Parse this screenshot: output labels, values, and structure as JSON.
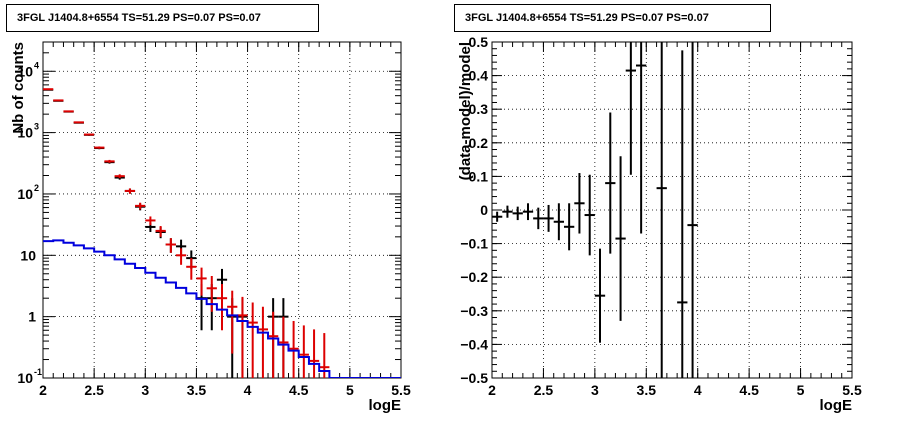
{
  "chart_data": [
    {
      "type": "scatter",
      "title": "3FGL J1404.8+6554 TS=51.29 PS=0.07 PS=0.07",
      "xlabel": "logE",
      "ylabel": "Nb of counts",
      "xlim": [
        2,
        5.5
      ],
      "ylim": [
        0.1,
        30000
      ],
      "yscale": "log",
      "grid": true,
      "x_ticks": [
        "2",
        "2.5",
        "3",
        "3.5",
        "4",
        "4.5",
        "5",
        "5.5"
      ],
      "y_ticks": [
        {
          "base": "10",
          "exp": "-1",
          "value": 0.1
        },
        {
          "base": "1",
          "exp": "",
          "value": 1
        },
        {
          "base": "10",
          "exp": "",
          "value": 10
        },
        {
          "base": "10",
          "exp": "2",
          "value": 100
        },
        {
          "base": "10",
          "exp": "3",
          "value": 1000
        },
        {
          "base": "10",
          "exp": "4",
          "value": 10000
        }
      ],
      "bin_width": 0.1,
      "series": [
        {
          "kind": "data",
          "color": "#000000",
          "points": [
            {
              "x": 2.05,
              "y": 5000,
              "lo": 4930,
              "hi": 5070
            },
            {
              "x": 2.15,
              "y": 3300,
              "lo": 3245,
              "hi": 3355
            },
            {
              "x": 2.25,
              "y": 2200,
              "lo": 2155,
              "hi": 2245
            },
            {
              "x": 2.35,
              "y": 1450,
              "lo": 1412,
              "hi": 1488
            },
            {
              "x": 2.45,
              "y": 920,
              "lo": 890,
              "hi": 950
            },
            {
              "x": 2.55,
              "y": 560,
              "lo": 536,
              "hi": 584
            },
            {
              "x": 2.65,
              "y": 330,
              "lo": 312,
              "hi": 348
            },
            {
              "x": 2.75,
              "y": 185,
              "lo": 171,
              "hi": 199
            },
            {
              "x": 2.85,
              "y": 112,
              "lo": 101,
              "hi": 123
            },
            {
              "x": 2.95,
              "y": 62,
              "lo": 54,
              "hi": 70
            },
            {
              "x": 3.05,
              "y": 29,
              "lo": 24,
              "hi": 34
            },
            {
              "x": 3.15,
              "y": 24,
              "lo": 19,
              "hi": 29
            },
            {
              "x": 3.25,
              "y": 15,
              "lo": 11,
              "hi": 19
            },
            {
              "x": 3.35,
              "y": 14,
              "lo": 10,
              "hi": 18
            },
            {
              "x": 3.45,
              "y": 9,
              "lo": 6,
              "hi": 12
            },
            {
              "x": 3.55,
              "y": 2,
              "lo": 0.6,
              "hi": 3.4
            },
            {
              "x": 3.65,
              "y": 2,
              "lo": 0.6,
              "hi": 3.4
            },
            {
              "x": 3.75,
              "y": 4,
              "lo": 2,
              "hi": 6
            },
            {
              "x": 3.85,
              "y": 1,
              "lo": 0.1,
              "hi": 2
            },
            {
              "x": 3.95,
              "y": 1,
              "lo": 0.1,
              "hi": 2
            },
            {
              "x": 4.25,
              "y": 1,
              "lo": 0.1,
              "hi": 2
            },
            {
              "x": 4.35,
              "y": 1,
              "lo": 0.1,
              "hi": 2
            }
          ]
        },
        {
          "kind": "model",
          "color": "#dd0000",
          "points": [
            {
              "x": 2.05,
              "y": 5100,
              "lo": 5000,
              "hi": 5200
            },
            {
              "x": 2.15,
              "y": 3350,
              "lo": 3280,
              "hi": 3420
            },
            {
              "x": 2.25,
              "y": 2220,
              "lo": 2170,
              "hi": 2270
            },
            {
              "x": 2.35,
              "y": 1470,
              "lo": 1430,
              "hi": 1510
            },
            {
              "x": 2.45,
              "y": 930,
              "lo": 900,
              "hi": 960
            },
            {
              "x": 2.55,
              "y": 570,
              "lo": 545,
              "hi": 595
            },
            {
              "x": 2.65,
              "y": 340,
              "lo": 321,
              "hi": 359
            },
            {
              "x": 2.75,
              "y": 195,
              "lo": 181,
              "hi": 209
            },
            {
              "x": 2.85,
              "y": 112,
              "lo": 101,
              "hi": 123
            },
            {
              "x": 2.95,
              "y": 64,
              "lo": 56,
              "hi": 72
            },
            {
              "x": 3.05,
              "y": 37,
              "lo": 31,
              "hi": 43
            },
            {
              "x": 3.15,
              "y": 25,
              "lo": 20,
              "hi": 30
            },
            {
              "x": 3.25,
              "y": 15,
              "lo": 11,
              "hi": 19
            },
            {
              "x": 3.35,
              "y": 10,
              "lo": 7,
              "hi": 13
            },
            {
              "x": 3.45,
              "y": 6.5,
              "lo": 4,
              "hi": 9
            },
            {
              "x": 3.55,
              "y": 4.2,
              "lo": 2.2,
              "hi": 6.3
            },
            {
              "x": 3.65,
              "y": 2.9,
              "lo": 1.2,
              "hi": 4.6
            },
            {
              "x": 3.75,
              "y": 2.0,
              "lo": 0.6,
              "hi": 3.4
            },
            {
              "x": 3.85,
              "y": 1.45,
              "lo": 0.25,
              "hi": 2.65
            },
            {
              "x": 3.95,
              "y": 1.05,
              "lo": 0.1,
              "hi": 2.1
            },
            {
              "x": 4.05,
              "y": 0.8,
              "lo": 0.1,
              "hi": 1.7
            },
            {
              "x": 4.15,
              "y": 0.62,
              "lo": 0.1,
              "hi": 1.45
            },
            {
              "x": 4.25,
              "y": 0.48,
              "lo": 0.1,
              "hi": 1.2
            },
            {
              "x": 4.35,
              "y": 0.38,
              "lo": 0.1,
              "hi": 1.0
            },
            {
              "x": 4.45,
              "y": 0.3,
              "lo": 0.1,
              "hi": 0.85
            },
            {
              "x": 4.55,
              "y": 0.24,
              "lo": 0.1,
              "hi": 0.72
            },
            {
              "x": 4.65,
              "y": 0.19,
              "lo": 0.1,
              "hi": 0.62
            },
            {
              "x": 4.75,
              "y": 0.15,
              "lo": 0.1,
              "hi": 0.54
            }
          ]
        },
        {
          "kind": "step",
          "color": "#0000dd",
          "bins": [
            {
              "x": 2.0,
              "y": 17
            },
            {
              "x": 2.1,
              "y": 17.5
            },
            {
              "x": 2.2,
              "y": 16
            },
            {
              "x": 2.3,
              "y": 14.5
            },
            {
              "x": 2.4,
              "y": 13
            },
            {
              "x": 2.5,
              "y": 11.5
            },
            {
              "x": 2.6,
              "y": 10
            },
            {
              "x": 2.7,
              "y": 8.6
            },
            {
              "x": 2.8,
              "y": 7.3
            },
            {
              "x": 2.9,
              "y": 6.2
            },
            {
              "x": 3.0,
              "y": 5.2
            },
            {
              "x": 3.1,
              "y": 4.3
            },
            {
              "x": 3.2,
              "y": 3.6
            },
            {
              "x": 3.3,
              "y": 2.95
            },
            {
              "x": 3.4,
              "y": 2.4
            },
            {
              "x": 3.5,
              "y": 1.95
            },
            {
              "x": 3.6,
              "y": 1.6
            },
            {
              "x": 3.7,
              "y": 1.3
            },
            {
              "x": 3.8,
              "y": 1.05
            },
            {
              "x": 3.9,
              "y": 0.85
            },
            {
              "x": 4.0,
              "y": 0.68
            },
            {
              "x": 4.1,
              "y": 0.55
            },
            {
              "x": 4.2,
              "y": 0.44
            },
            {
              "x": 4.3,
              "y": 0.35
            },
            {
              "x": 4.4,
              "y": 0.28
            },
            {
              "x": 4.5,
              "y": 0.22
            },
            {
              "x": 4.6,
              "y": 0.17
            },
            {
              "x": 4.7,
              "y": 0.13
            },
            {
              "x": 4.8,
              "y": 0.1
            },
            {
              "x": 4.9,
              "y": 0.1
            },
            {
              "x": 5.0,
              "y": 0.1
            },
            {
              "x": 5.1,
              "y": 0.1
            },
            {
              "x": 5.2,
              "y": 0.1
            },
            {
              "x": 5.3,
              "y": 0.1
            },
            {
              "x": 5.4,
              "y": 0.1
            }
          ]
        }
      ]
    },
    {
      "type": "scatter",
      "title": "3FGL J1404.8+6554 TS=51.29 PS=0.07 PS=0.07",
      "xlabel": "logE",
      "ylabel": "(data-model)/model",
      "xlim": [
        2,
        5.5
      ],
      "ylim": [
        -0.5,
        0.5
      ],
      "grid": true,
      "x_ticks": [
        "2",
        "2.5",
        "3",
        "3.5",
        "4",
        "4.5",
        "5",
        "5.5"
      ],
      "y_ticks": [
        "−0.5",
        "−0.4",
        "−0.3",
        "−0.2",
        "−0.1",
        "0",
        "0.1",
        "0.2",
        "0.3",
        "0.4",
        "0.5"
      ],
      "bin_width": 0.1,
      "series": [
        {
          "kind": "residual",
          "color": "#000000",
          "points": [
            {
              "x": 2.05,
              "y": -0.02,
              "err": 0.015
            },
            {
              "x": 2.15,
              "y": -0.005,
              "err": 0.018
            },
            {
              "x": 2.25,
              "y": -0.01,
              "err": 0.02
            },
            {
              "x": 2.35,
              "y": -0.005,
              "err": 0.025
            },
            {
              "x": 2.45,
              "y": -0.025,
              "err": 0.032
            },
            {
              "x": 2.55,
              "y": -0.025,
              "err": 0.04
            },
            {
              "x": 2.65,
              "y": -0.035,
              "err": 0.055
            },
            {
              "x": 2.75,
              "y": -0.05,
              "err": 0.07
            },
            {
              "x": 2.85,
              "y": 0.02,
              "err": 0.09
            },
            {
              "x": 2.95,
              "y": -0.015,
              "err": 0.12
            },
            {
              "x": 3.05,
              "y": -0.255,
              "err": 0.14
            },
            {
              "x": 3.15,
              "y": 0.08,
              "err": 0.21
            },
            {
              "x": 3.25,
              "y": -0.085,
              "err": 0.245
            },
            {
              "x": 3.35,
              "y": 0.415,
              "err": 0.31
            },
            {
              "x": 3.45,
              "y": 0.43,
              "err": 0.5
            },
            {
              "x": 3.65,
              "y": 0.065,
              "err": 0.7
            },
            {
              "x": 3.85,
              "y": -0.275,
              "err": 0.75
            },
            {
              "x": 3.95,
              "y": -0.045,
              "err": 1.0
            }
          ]
        }
      ]
    }
  ]
}
